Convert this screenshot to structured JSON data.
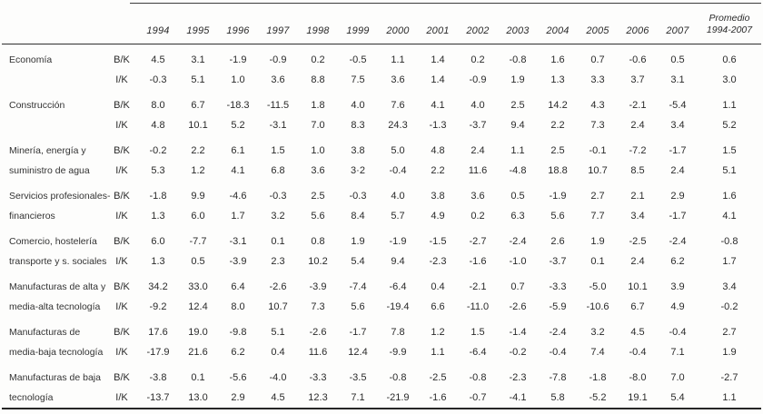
{
  "table": {
    "avg_header_line1": "Promedio",
    "avg_header_line2": "1994-2007",
    "columns": [
      "1994",
      "1995",
      "1996",
      "1997",
      "1998",
      "1999",
      "2000",
      "2001",
      "2002",
      "2003",
      "2004",
      "2005",
      "2006",
      "2007"
    ],
    "sectors": [
      {
        "label_lines": [
          "Economía"
        ],
        "rows": [
          {
            "measure": "B/K",
            "values": [
              "4.5",
              "3.1",
              "-1.9",
              "-0.9",
              "0.2",
              "-0.5",
              "1.1",
              "1.4",
              "0.2",
              "-0.8",
              "1.6",
              "0.7",
              "-0.6",
              "0.5",
              "0.6"
            ]
          },
          {
            "measure": "I/K",
            "values": [
              "-0.3",
              "5.1",
              "1.0",
              "3.6",
              "8.8",
              "7.5",
              "3.6",
              "1.4",
              "-0.9",
              "1.9",
              "1.3",
              "3.3",
              "3.7",
              "3.1",
              "3.0"
            ]
          }
        ]
      },
      {
        "label_lines": [
          "Construcción"
        ],
        "rows": [
          {
            "measure": "B/K",
            "values": [
              "8.0",
              "6.7",
              "-18.3",
              "-11.5",
              "1.8",
              "4.0",
              "7.6",
              "4.1",
              "4.0",
              "2.5",
              "14.2",
              "4.3",
              "-2.1",
              "-5.4",
              "1.1"
            ]
          },
          {
            "measure": "I/K",
            "values": [
              "4.8",
              "10.1",
              "5.2",
              "-3.1",
              "7.0",
              "8.3",
              "24.3",
              "-1.3",
              "-3.7",
              "9.4",
              "2.2",
              "7.3",
              "2.4",
              "3.4",
              "5.2"
            ]
          }
        ]
      },
      {
        "label_lines": [
          "Minería, energía y",
          "suministro de agua"
        ],
        "rows": [
          {
            "measure": "B/K",
            "values": [
              "-0.2",
              "2.2",
              "6.1",
              "1.5",
              "1.0",
              "3.8",
              "5.0",
              "4.8",
              "2.4",
              "1.1",
              "2.5",
              "-0.1",
              "-7.2",
              "-1.7",
              "1.5"
            ]
          },
          {
            "measure": "I/K",
            "values": [
              "5.3",
              "1.2",
              "4.1",
              "6.8",
              "3.6",
              "3·2",
              "-0.4",
              "2.2",
              "11.6",
              "-4.8",
              "18.8",
              "10.7",
              "8.5",
              "2.4",
              "5.1"
            ]
          }
        ]
      },
      {
        "label_lines": [
          "Servicios profesionales-",
          "financieros"
        ],
        "rows": [
          {
            "measure": "B/K",
            "values": [
              "-1.8",
              "9.9",
              "-4.6",
              "-0.3",
              "2.5",
              "-0.3",
              "4.0",
              "3.8",
              "3.6",
              "0.5",
              "-1.9",
              "2.7",
              "2.1",
              "2.9",
              "1.6"
            ]
          },
          {
            "measure": "I/K",
            "values": [
              "1.3",
              "6.0",
              "1.7",
              "3.2",
              "5.6",
              "8.4",
              "5.7",
              "4.9",
              "0.2",
              "6.3",
              "5.6",
              "7.7",
              "3.4",
              "-1.7",
              "4.1"
            ]
          }
        ]
      },
      {
        "label_lines": [
          "Comercio, hostelería",
          "transporte y s. sociales"
        ],
        "rows": [
          {
            "measure": "B/K",
            "values": [
              "6.0",
              "-7.7",
              "-3.1",
              "0.1",
              "0.8",
              "1.9",
              "-1.9",
              "-1.5",
              "-2.7",
              "-2.4",
              "2.6",
              "1.9",
              "-2.5",
              "-2.4",
              "-0.8"
            ]
          },
          {
            "measure": "I/K",
            "values": [
              "1.3",
              "0.5",
              "-3.9",
              "2.3",
              "10.2",
              "5.4",
              "9.4",
              "-2.3",
              "-1.6",
              "-1.0",
              "-3.7",
              "0.1",
              "2.4",
              "6.2",
              "1.7"
            ]
          }
        ]
      },
      {
        "label_lines": [
          "Manufacturas de alta y",
          "media-alta tecnología"
        ],
        "rows": [
          {
            "measure": "B/K",
            "values": [
              "34.2",
              "33.0",
              "6.4",
              "-2.6",
              "-3.9",
              "-7.4",
              "-6.4",
              "0.4",
              "-2.1",
              "0.7",
              "-3.3",
              "-5.0",
              "10.1",
              "3.9",
              "3.4"
            ]
          },
          {
            "measure": "I/K",
            "values": [
              "-9.2",
              "12.4",
              "8.0",
              "10.7",
              "7.3",
              "5.6",
              "-19.4",
              "6.6",
              "-11.0",
              "-2.6",
              "-5.9",
              "-10.6",
              "6.7",
              "4.9",
              "-0.2"
            ]
          }
        ]
      },
      {
        "label_lines": [
          "Manufacturas de",
          "media-baja tecnología"
        ],
        "rows": [
          {
            "measure": "B/K",
            "values": [
              "17.6",
              "19.0",
              "-9.8",
              "5.1",
              "-2.6",
              "-1.7",
              "7.8",
              "1.2",
              "1.5",
              "-1.4",
              "-2.4",
              "3.2",
              "4.5",
              "-0.4",
              "2.7"
            ]
          },
          {
            "measure": "I/K",
            "values": [
              "-17.9",
              "21.6",
              "6.2",
              "0.4",
              "11.6",
              "12.4",
              "-9.9",
              "1.1",
              "-6.4",
              "-0.2",
              "-0.4",
              "7.4",
              "-0.4",
              "7.1",
              "1.9"
            ]
          }
        ]
      },
      {
        "label_lines": [
          "Manufacturas de baja",
          "tecnología"
        ],
        "rows": [
          {
            "measure": "B/K",
            "values": [
              "-3.8",
              "0.1",
              "-5.6",
              "-4.0",
              "-3.3",
              "-3.5",
              "-0.8",
              "-2.5",
              "-0.8",
              "-2.3",
              "-7.8",
              "-1.8",
              "-8.0",
              "7.0",
              "-2.7"
            ]
          },
          {
            "measure": "I/K",
            "values": [
              "-13.7",
              "13.0",
              "2.9",
              "4.5",
              "12.3",
              "7.1",
              "-21.9",
              "-1.6",
              "-0.7",
              "-4.1",
              "5.8",
              "-5.2",
              "19.1",
              "5.4",
              "1.1"
            ]
          }
        ]
      }
    ]
  }
}
